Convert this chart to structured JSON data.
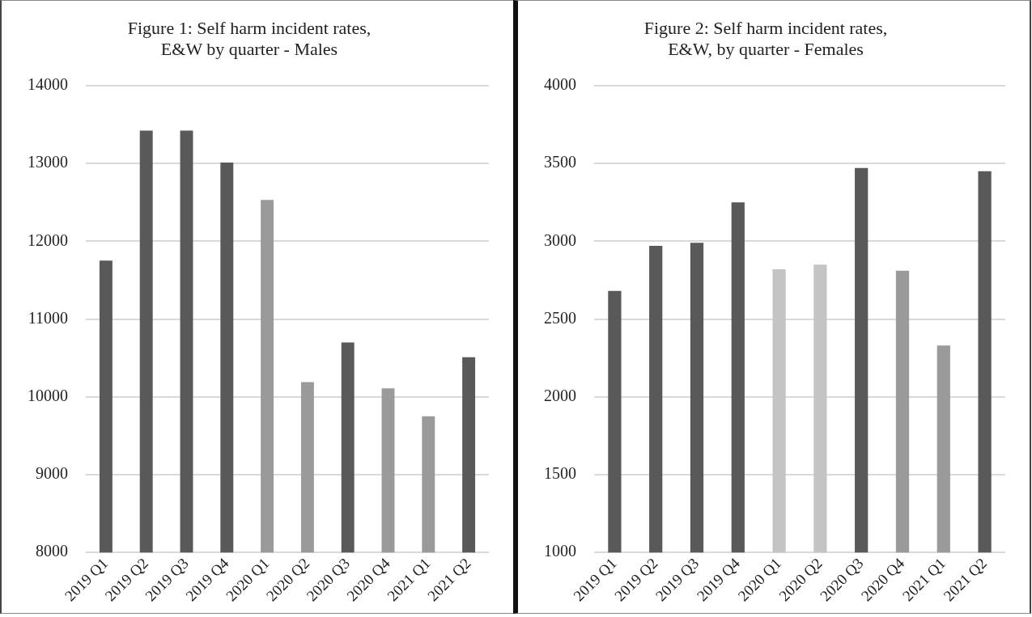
{
  "chart_data": [
    {
      "type": "bar",
      "title": [
        "Figure 1: Self harm incident rates,",
        "E&W by quarter - Males"
      ],
      "categories": [
        "2019 Q1",
        "2019 Q2",
        "2019 Q3",
        "2019 Q4",
        "2020 Q1",
        "2020 Q2",
        "2020 Q3",
        "2020 Q4",
        "2021 Q1",
        "2021 Q2"
      ],
      "values": [
        11750,
        13420,
        13420,
        13010,
        12530,
        10190,
        10700,
        10110,
        9750,
        10510
      ],
      "colors": [
        "#595959",
        "#595959",
        "#595959",
        "#595959",
        "#9a9a9a",
        "#9a9a9a",
        "#595959",
        "#9a9a9a",
        "#9a9a9a",
        "#595959"
      ],
      "ylim": [
        8000,
        14000
      ],
      "yticks": [
        8000,
        9000,
        10000,
        11000,
        12000,
        13000,
        14000
      ],
      "grid": "y",
      "legend": false
    },
    {
      "type": "bar",
      "title": [
        "Figure 2: Self harm incident rates,",
        "E&W, by quarter - Females"
      ],
      "categories": [
        "2019 Q1",
        "2019 Q2",
        "2019 Q3",
        "2019 Q4",
        "2020 Q1",
        "2020 Q2",
        "2020 Q3",
        "2020 Q4",
        "2021 Q1",
        "2021 Q2"
      ],
      "values": [
        2680,
        2970,
        2990,
        3250,
        2820,
        2850,
        3470,
        2810,
        2330,
        3450
      ],
      "colors": [
        "#595959",
        "#595959",
        "#595959",
        "#595959",
        "#c4c4c4",
        "#c4c4c4",
        "#595959",
        "#9a9a9a",
        "#9a9a9a",
        "#595959"
      ],
      "ylim": [
        1000,
        4000
      ],
      "yticks": [
        1000,
        1500,
        2000,
        2500,
        3000,
        3500,
        4000
      ],
      "grid": "y",
      "legend": false
    }
  ]
}
